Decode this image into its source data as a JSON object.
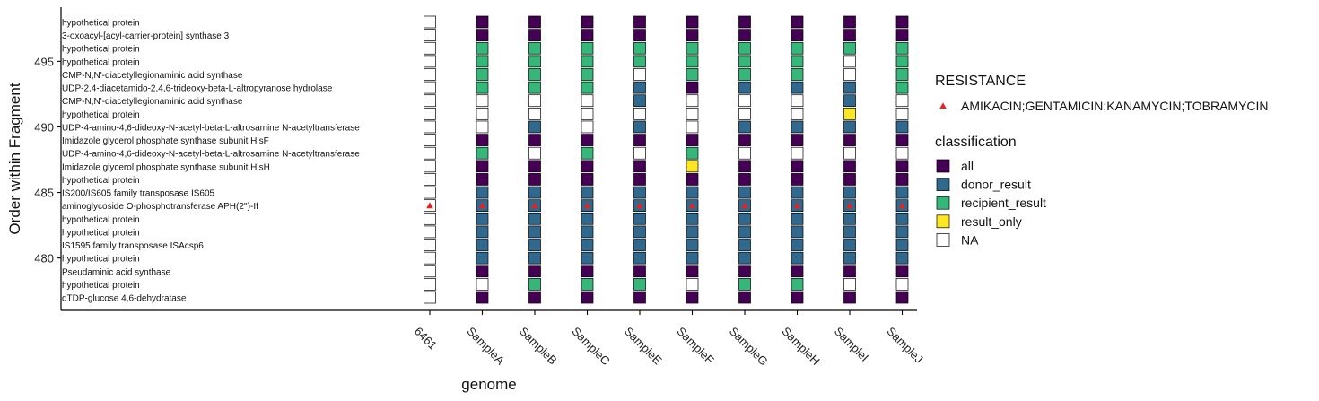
{
  "chart_data": {
    "type": "heatmap",
    "xlabel": "genome",
    "ylabel": "Order within Fragment",
    "x_categories": [
      "6461",
      "SampleA",
      "SampleB",
      "SampleC",
      "SampleE",
      "SampleF",
      "SampleG",
      "SampleH",
      "SampleI",
      "SampleJ"
    ],
    "y_order": [
      498,
      497,
      496,
      495,
      494,
      493,
      492,
      491,
      490,
      489,
      488,
      487,
      486,
      485,
      484,
      483,
      482,
      481,
      480,
      479,
      478,
      477
    ],
    "y_ticks": [
      480,
      485,
      490,
      495
    ],
    "ylim": [
      475.9,
      499.1
    ],
    "gene_labels": [
      "hypothetical protein",
      "3-oxoacyl-[acyl-carrier-protein] synthase 3",
      "hypothetical protein",
      "hypothetical protein",
      "CMP-N,N'-diacetyllegionaminic acid synthase",
      "UDP-2,4-diacetamido-2,4,6-trideoxy-beta-L-altropyranose hydrolase",
      "CMP-N,N'-diacetyllegionaminic acid synthase",
      "hypothetical protein",
      "UDP-4-amino-4,6-dideoxy-N-acetyl-beta-L-altrosamine N-acetyltransferase",
      "Imidazole glycerol phosphate synthase subunit HisF",
      "UDP-4-amino-4,6-dideoxy-N-acetyl-beta-L-altrosamine N-acetyltransferase",
      "Imidazole glycerol phosphate synthase subunit HisH",
      "hypothetical protein",
      "IS200/IS605 family transposase IS605",
      "aminoglycoside O-phosphotransferase APH(2'')-If",
      "hypothetical protein",
      "hypothetical protein",
      "IS1595 family transposase ISAcsp6",
      "hypothetical protein",
      "Pseudaminic acid synthase",
      "hypothetical protein",
      "dTDP-glucose 4,6-dehydratase"
    ],
    "cells": {
      "6461": [
        "NA",
        "NA",
        "NA",
        "NA",
        "NA",
        "NA",
        "NA",
        "NA",
        "NA",
        "NA",
        "NA",
        "NA",
        "NA",
        "NA",
        "NA",
        "NA",
        "NA",
        "NA",
        "NA",
        "NA",
        "NA",
        "NA"
      ],
      "SampleA": [
        "all",
        "all",
        "recipient_result",
        "recipient_result",
        "recipient_result",
        "recipient_result",
        "NA",
        "NA",
        "NA",
        "all",
        "recipient_result",
        "all",
        "all",
        "donor_result",
        "donor_result",
        "donor_result",
        "donor_result",
        "donor_result",
        "donor_result",
        "all",
        "NA",
        "all"
      ],
      "SampleB": [
        "all",
        "all",
        "recipient_result",
        "recipient_result",
        "recipient_result",
        "recipient_result",
        "NA",
        "NA",
        "donor_result",
        "all",
        "NA",
        "all",
        "all",
        "donor_result",
        "donor_result",
        "donor_result",
        "donor_result",
        "donor_result",
        "donor_result",
        "all",
        "recipient_result",
        "all"
      ],
      "SampleC": [
        "all",
        "all",
        "recipient_result",
        "recipient_result",
        "recipient_result",
        "recipient_result",
        "NA",
        "NA",
        "NA",
        "all",
        "recipient_result",
        "all",
        "all",
        "donor_result",
        "donor_result",
        "donor_result",
        "donor_result",
        "donor_result",
        "donor_result",
        "all",
        "recipient_result",
        "all"
      ],
      "SampleE": [
        "all",
        "all",
        "recipient_result",
        "recipient_result",
        "NA",
        "donor_result",
        "donor_result",
        "NA",
        "donor_result",
        "all",
        "NA",
        "all",
        "all",
        "donor_result",
        "donor_result",
        "donor_result",
        "donor_result",
        "donor_result",
        "donor_result",
        "all",
        "recipient_result",
        "all"
      ],
      "SampleF": [
        "all",
        "all",
        "recipient_result",
        "recipient_result",
        "recipient_result",
        "all",
        "NA",
        "NA",
        "NA",
        "all",
        "recipient_result",
        "result_only",
        "all",
        "donor_result",
        "donor_result",
        "donor_result",
        "donor_result",
        "donor_result",
        "donor_result",
        "all",
        "NA",
        "all"
      ],
      "SampleG": [
        "all",
        "all",
        "recipient_result",
        "recipient_result",
        "recipient_result",
        "donor_result",
        "NA",
        "NA",
        "donor_result",
        "all",
        "NA",
        "all",
        "all",
        "donor_result",
        "donor_result",
        "donor_result",
        "donor_result",
        "donor_result",
        "donor_result",
        "all",
        "recipient_result",
        "all"
      ],
      "SampleH": [
        "all",
        "all",
        "recipient_result",
        "recipient_result",
        "recipient_result",
        "donor_result",
        "NA",
        "NA",
        "donor_result",
        "all",
        "NA",
        "all",
        "all",
        "donor_result",
        "donor_result",
        "donor_result",
        "donor_result",
        "donor_result",
        "donor_result",
        "all",
        "recipient_result",
        "all"
      ],
      "SampleI": [
        "all",
        "all",
        "recipient_result",
        "NA",
        "NA",
        "donor_result",
        "donor_result",
        "result_only",
        "donor_result",
        "all",
        "NA",
        "all",
        "all",
        "donor_result",
        "donor_result",
        "donor_result",
        "donor_result",
        "donor_result",
        "donor_result",
        "all",
        "NA",
        "all"
      ],
      "SampleJ": [
        "all",
        "all",
        "recipient_result",
        "recipient_result",
        "recipient_result",
        "recipient_result",
        "NA",
        "NA",
        "donor_result",
        "all",
        "NA",
        "all",
        "all",
        "donor_result",
        "donor_result",
        "donor_result",
        "donor_result",
        "donor_result",
        "donor_result",
        "all",
        "NA",
        "all"
      ]
    },
    "resistance_marker_row": 484,
    "resistance_genomes": [
      "6461",
      "SampleA",
      "SampleB",
      "SampleC",
      "SampleE",
      "SampleF",
      "SampleG",
      "SampleH",
      "SampleI",
      "SampleJ"
    ],
    "legend": {
      "resistance_title": "RESISTANCE",
      "resistance_items": [
        "AMIKACIN;GENTAMICIN;KANAMYCIN;TOBRAMYCIN"
      ],
      "classification_title": "classification",
      "classification_items": [
        "all",
        "donor_result",
        "recipient_result",
        "result_only",
        "NA"
      ]
    },
    "colors": {
      "all": "#440154",
      "donor_result": "#31688e",
      "recipient_result": "#35b779",
      "result_only": "#fde725",
      "NA": "#ffffff",
      "marker": "#e8221c"
    },
    "grid": false,
    "legend_position": "right"
  }
}
